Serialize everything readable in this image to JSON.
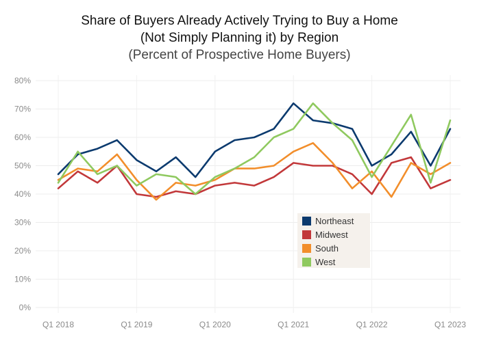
{
  "chart_data": {
    "type": "line",
    "title_lines": [
      "Share of Buyers Already Actively Trying to Buy a Home",
      "(Not Simply Planning it) by Region"
    ],
    "subtitle": "(Percent of Prospective Home Buyers)",
    "ylim": [
      0,
      80
    ],
    "y_ticks": [
      "0%",
      "10%",
      "20%",
      "30%",
      "40%",
      "50%",
      "60%",
      "70%",
      "80%"
    ],
    "x_ticks": [
      {
        "index": 0,
        "label": "Q1 2018"
      },
      {
        "index": 4,
        "label": "Q1 2019"
      },
      {
        "index": 8,
        "label": "Q1 2020"
      },
      {
        "index": 12,
        "label": "Q1 2021"
      },
      {
        "index": 16,
        "label": "Q1 2022"
      },
      {
        "index": 20,
        "label": "Q1 2023"
      }
    ],
    "x": [
      "Q1 2018",
      "Q2 2018",
      "Q3 2018",
      "Q4 2018",
      "Q1 2019",
      "Q2 2019",
      "Q3 2019",
      "Q4 2019",
      "Q1 2020",
      "Q2 2020",
      "Q3 2020",
      "Q4 2020",
      "Q1 2021",
      "Q2 2021",
      "Q3 2021",
      "Q4 2021",
      "Q1 2022",
      "Q2 2022",
      "Q3 2022",
      "Q4 2022",
      "Q1 2023"
    ],
    "grid": true,
    "legend_position": "lower-middle",
    "series": [
      {
        "name": "Northeast",
        "color": "#0b3a6e",
        "values": [
          47,
          54,
          56,
          59,
          52,
          48,
          53,
          46,
          55,
          59,
          60,
          63,
          72,
          66,
          65,
          63,
          50,
          54,
          62,
          50,
          63
        ]
      },
      {
        "name": "Midwest",
        "color": "#c2383a",
        "values": [
          42,
          48,
          44,
          50,
          40,
          39,
          41,
          40,
          43,
          44,
          43,
          46,
          51,
          50,
          50,
          47,
          40,
          51,
          53,
          42,
          45
        ]
      },
      {
        "name": "South",
        "color": "#f28e2b",
        "values": [
          45,
          49,
          48,
          54,
          45,
          38,
          44,
          43,
          45,
          49,
          49,
          50,
          55,
          58,
          51,
          42,
          48,
          39,
          51,
          47,
          51
        ]
      },
      {
        "name": "West",
        "color": "#8fc95f",
        "values": [
          44,
          55,
          47,
          50,
          43,
          47,
          46,
          40,
          46,
          49,
          53,
          60,
          63,
          72,
          65,
          59,
          46,
          57,
          68,
          44,
          66
        ]
      }
    ]
  }
}
